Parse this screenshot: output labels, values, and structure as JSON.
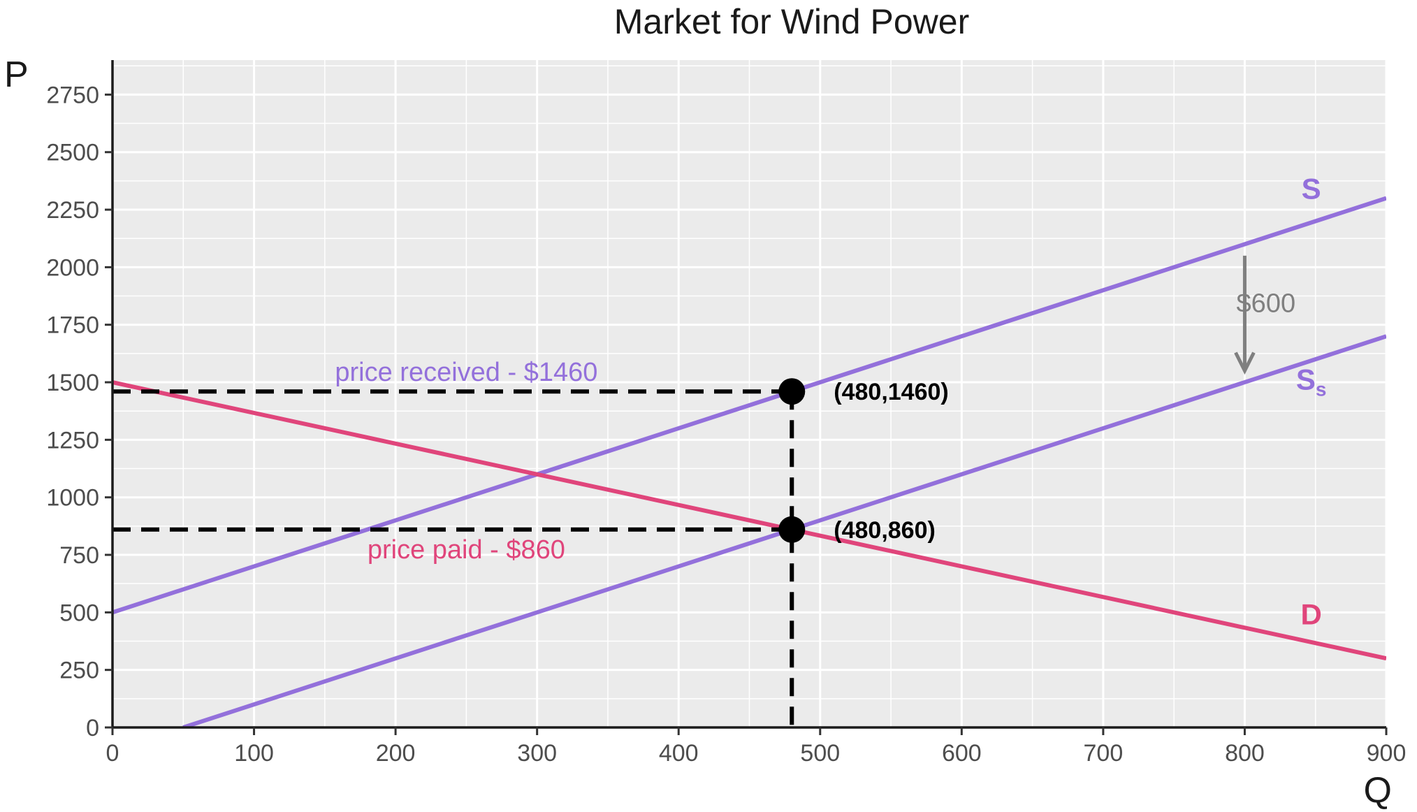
{
  "chart_data": {
    "type": "line",
    "title": "Market for Wind Power",
    "xlabel": "Q",
    "ylabel": "P",
    "xlim": [
      0,
      900
    ],
    "ylim": [
      0,
      2900
    ],
    "x_ticks": [
      0,
      100,
      200,
      300,
      400,
      500,
      600,
      700,
      800,
      900
    ],
    "y_ticks": [
      0,
      250,
      500,
      750,
      1000,
      1250,
      1500,
      1750,
      2000,
      2250,
      2500,
      2750
    ],
    "grid": true,
    "colors": {
      "supply": "#9370DB",
      "demand": "#E0457B",
      "arrow": "#7f7f7f",
      "panel": "#EBEBEB",
      "gridline": "#FFFFFF",
      "guide": "#000000"
    },
    "series": [
      {
        "key": "S",
        "name": "S",
        "color": "#9370DB",
        "points": [
          [
            0,
            500
          ],
          [
            900,
            2300
          ]
        ]
      },
      {
        "key": "Ss",
        "name": "Ss",
        "color": "#9370DB",
        "points": [
          [
            50,
            0
          ],
          [
            900,
            1700
          ]
        ]
      },
      {
        "key": "D",
        "name": "D",
        "color": "#E0457B",
        "points": [
          [
            0,
            1500
          ],
          [
            900,
            300
          ]
        ]
      }
    ],
    "points": [
      {
        "x": 480,
        "y": 1460,
        "label": "(480,1460)"
      },
      {
        "x": 480,
        "y": 860,
        "label": "(480,860)"
      }
    ],
    "curve_labels": [
      {
        "text": "S",
        "sub": "",
        "x": 847,
        "y": 2340,
        "color": "#9370DB"
      },
      {
        "text": "S",
        "sub": "s",
        "x": 847,
        "y": 1510,
        "color": "#9370DB"
      },
      {
        "text": "D",
        "sub": "",
        "x": 847,
        "y": 490,
        "color": "#E0457B"
      }
    ],
    "annotations": [
      {
        "text": "price received - $1460",
        "x": 250,
        "y": 1545,
        "color": "#9370DB"
      },
      {
        "text": "price paid - $860",
        "x": 250,
        "y": 775,
        "color": "#E0457B"
      },
      {
        "text": "$600",
        "x": 815,
        "y": 1845,
        "color": "#7f7f7f"
      }
    ],
    "subsidy_arrow": {
      "x": 800,
      "y_from": 2050,
      "y_to": 1550
    },
    "guides": [
      {
        "from": [
          0,
          1460
        ],
        "to": [
          480,
          1460
        ]
      },
      {
        "from": [
          0,
          860
        ],
        "to": [
          480,
          860
        ]
      },
      {
        "from": [
          480,
          1460
        ],
        "to": [
          480,
          0
        ]
      }
    ]
  }
}
